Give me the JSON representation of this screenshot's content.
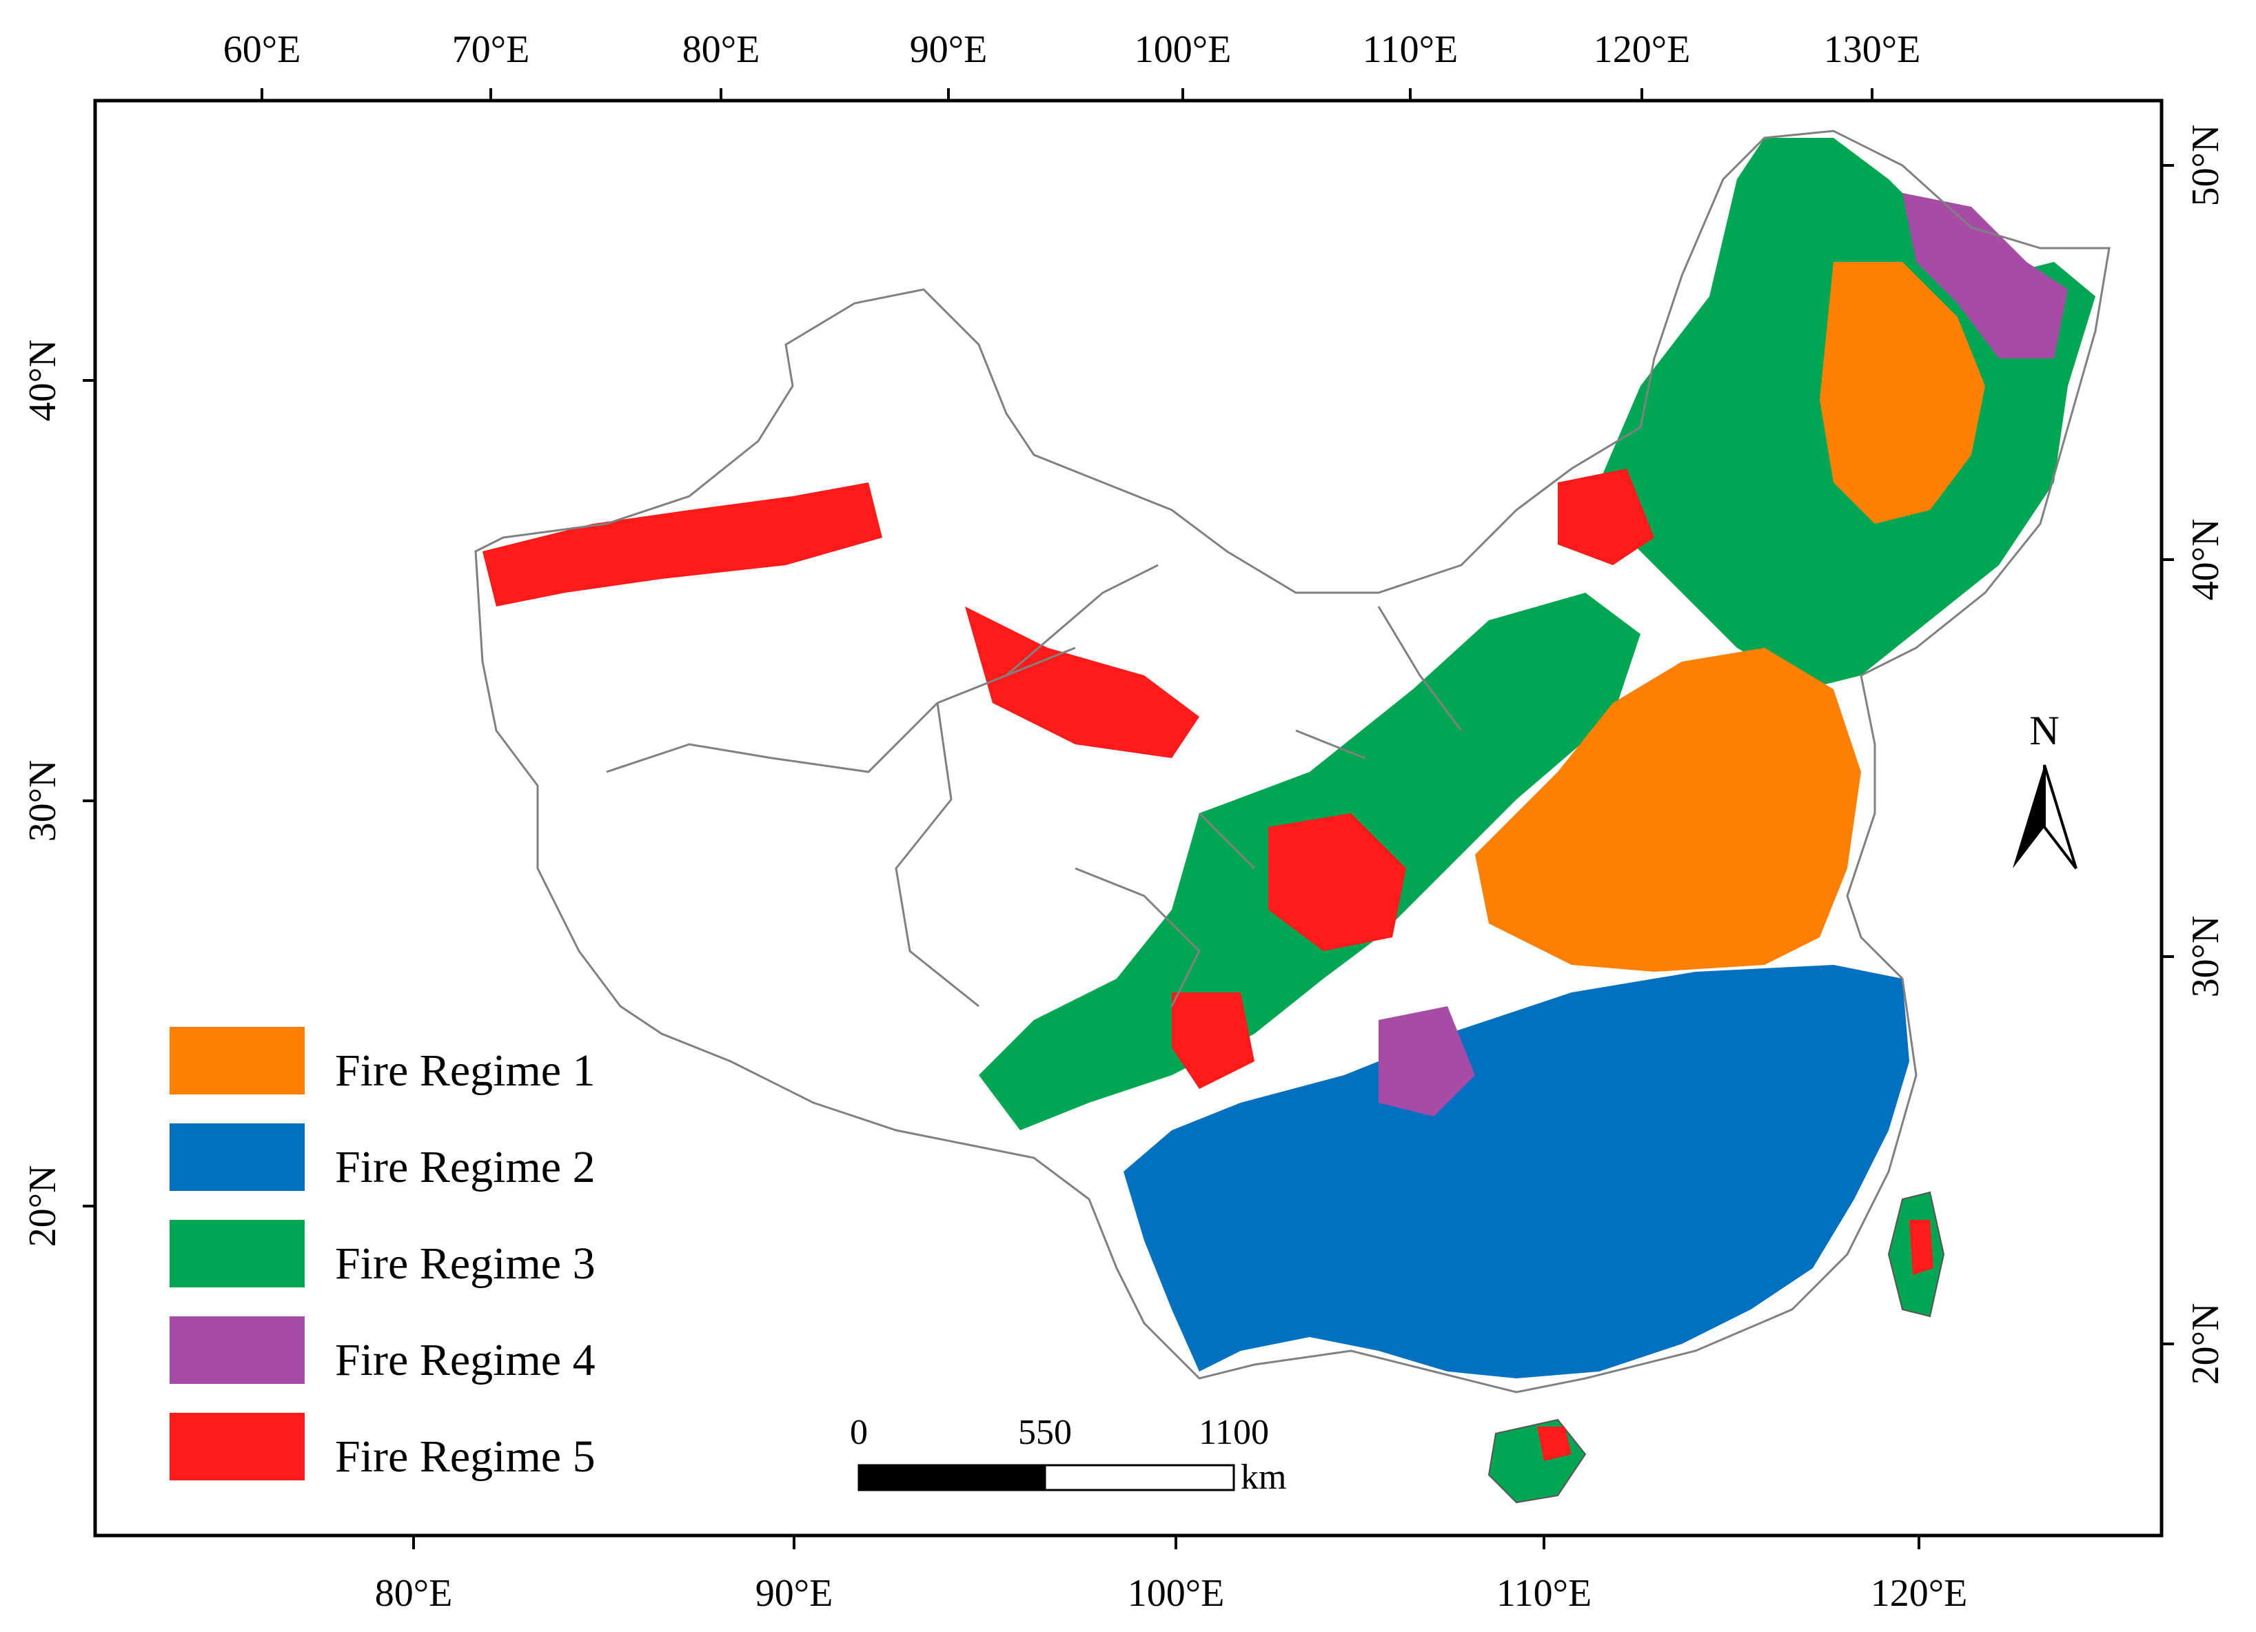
{
  "map": {
    "top_axis_labels": [
      "60°E",
      "70°E",
      "80°E",
      "90°E",
      "100°E",
      "110°E",
      "120°E",
      "130°E"
    ],
    "bottom_axis_labels": [
      "80°E",
      "90°E",
      "100°E",
      "110°E",
      "120°E"
    ],
    "left_axis_labels": [
      "40°N",
      "30°N",
      "20°N"
    ],
    "right_axis_labels": [
      "50°N",
      "40°N",
      "30°N",
      "20°N"
    ],
    "north_arrow_label": "N",
    "scale_bar": {
      "labels": [
        "0",
        "550",
        "1100"
      ],
      "unit": "km"
    }
  },
  "legend": {
    "items": [
      {
        "label": "Fire Regime 1",
        "color": "#ff8000"
      },
      {
        "label": "Fire Regime 2",
        "color": "#0070c0"
      },
      {
        "label": "Fire Regime 3",
        "color": "#00a651"
      },
      {
        "label": "Fire Regime 4",
        "color": "#a64ca6"
      },
      {
        "label": "Fire Regime 5",
        "color": "#ff1a1a"
      }
    ]
  },
  "colors": {
    "frame": "#000000",
    "boundary": "#808080",
    "background": "#ffffff"
  }
}
